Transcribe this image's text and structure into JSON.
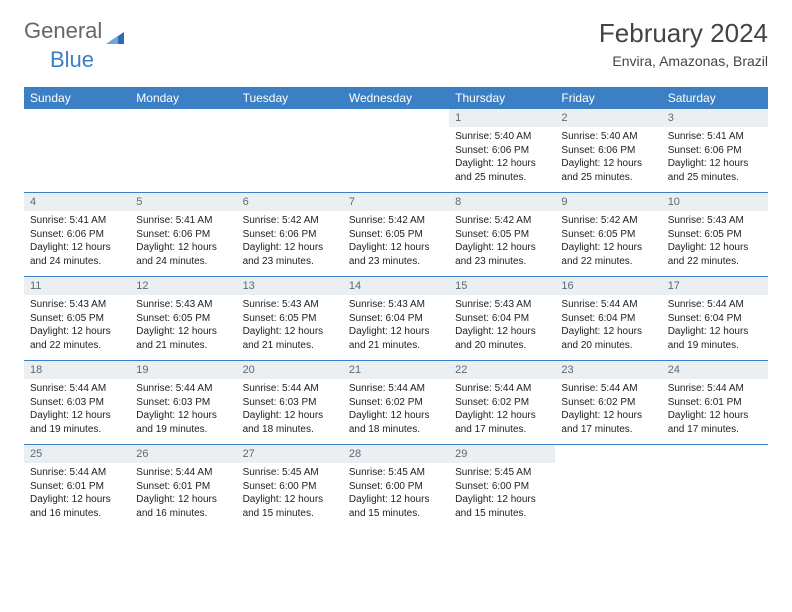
{
  "brand": {
    "part1": "General",
    "part2": "Blue"
  },
  "title": "February 2024",
  "location": "Envira, Amazonas, Brazil",
  "colors": {
    "header_bg": "#3b7fc4",
    "header_fg": "#ffffff",
    "daynum_bg": "#eceff1",
    "daynum_fg": "#5a6a78",
    "rule": "#3b7fc4",
    "text": "#222222"
  },
  "weekdays": [
    "Sunday",
    "Monday",
    "Tuesday",
    "Wednesday",
    "Thursday",
    "Friday",
    "Saturday"
  ],
  "weeks": [
    [
      null,
      null,
      null,
      null,
      {
        "n": "1",
        "sr": "5:40 AM",
        "ss": "6:06 PM",
        "dl": "12 hours and 25 minutes."
      },
      {
        "n": "2",
        "sr": "5:40 AM",
        "ss": "6:06 PM",
        "dl": "12 hours and 25 minutes."
      },
      {
        "n": "3",
        "sr": "5:41 AM",
        "ss": "6:06 PM",
        "dl": "12 hours and 25 minutes."
      }
    ],
    [
      {
        "n": "4",
        "sr": "5:41 AM",
        "ss": "6:06 PM",
        "dl": "12 hours and 24 minutes."
      },
      {
        "n": "5",
        "sr": "5:41 AM",
        "ss": "6:06 PM",
        "dl": "12 hours and 24 minutes."
      },
      {
        "n": "6",
        "sr": "5:42 AM",
        "ss": "6:06 PM",
        "dl": "12 hours and 23 minutes."
      },
      {
        "n": "7",
        "sr": "5:42 AM",
        "ss": "6:05 PM",
        "dl": "12 hours and 23 minutes."
      },
      {
        "n": "8",
        "sr": "5:42 AM",
        "ss": "6:05 PM",
        "dl": "12 hours and 23 minutes."
      },
      {
        "n": "9",
        "sr": "5:42 AM",
        "ss": "6:05 PM",
        "dl": "12 hours and 22 minutes."
      },
      {
        "n": "10",
        "sr": "5:43 AM",
        "ss": "6:05 PM",
        "dl": "12 hours and 22 minutes."
      }
    ],
    [
      {
        "n": "11",
        "sr": "5:43 AM",
        "ss": "6:05 PM",
        "dl": "12 hours and 22 minutes."
      },
      {
        "n": "12",
        "sr": "5:43 AM",
        "ss": "6:05 PM",
        "dl": "12 hours and 21 minutes."
      },
      {
        "n": "13",
        "sr": "5:43 AM",
        "ss": "6:05 PM",
        "dl": "12 hours and 21 minutes."
      },
      {
        "n": "14",
        "sr": "5:43 AM",
        "ss": "6:04 PM",
        "dl": "12 hours and 21 minutes."
      },
      {
        "n": "15",
        "sr": "5:43 AM",
        "ss": "6:04 PM",
        "dl": "12 hours and 20 minutes."
      },
      {
        "n": "16",
        "sr": "5:44 AM",
        "ss": "6:04 PM",
        "dl": "12 hours and 20 minutes."
      },
      {
        "n": "17",
        "sr": "5:44 AM",
        "ss": "6:04 PM",
        "dl": "12 hours and 19 minutes."
      }
    ],
    [
      {
        "n": "18",
        "sr": "5:44 AM",
        "ss": "6:03 PM",
        "dl": "12 hours and 19 minutes."
      },
      {
        "n": "19",
        "sr": "5:44 AM",
        "ss": "6:03 PM",
        "dl": "12 hours and 19 minutes."
      },
      {
        "n": "20",
        "sr": "5:44 AM",
        "ss": "6:03 PM",
        "dl": "12 hours and 18 minutes."
      },
      {
        "n": "21",
        "sr": "5:44 AM",
        "ss": "6:02 PM",
        "dl": "12 hours and 18 minutes."
      },
      {
        "n": "22",
        "sr": "5:44 AM",
        "ss": "6:02 PM",
        "dl": "12 hours and 17 minutes."
      },
      {
        "n": "23",
        "sr": "5:44 AM",
        "ss": "6:02 PM",
        "dl": "12 hours and 17 minutes."
      },
      {
        "n": "24",
        "sr": "5:44 AM",
        "ss": "6:01 PM",
        "dl": "12 hours and 17 minutes."
      }
    ],
    [
      {
        "n": "25",
        "sr": "5:44 AM",
        "ss": "6:01 PM",
        "dl": "12 hours and 16 minutes."
      },
      {
        "n": "26",
        "sr": "5:44 AM",
        "ss": "6:01 PM",
        "dl": "12 hours and 16 minutes."
      },
      {
        "n": "27",
        "sr": "5:45 AM",
        "ss": "6:00 PM",
        "dl": "12 hours and 15 minutes."
      },
      {
        "n": "28",
        "sr": "5:45 AM",
        "ss": "6:00 PM",
        "dl": "12 hours and 15 minutes."
      },
      {
        "n": "29",
        "sr": "5:45 AM",
        "ss": "6:00 PM",
        "dl": "12 hours and 15 minutes."
      },
      null,
      null
    ]
  ],
  "labels": {
    "sunrise": "Sunrise: ",
    "sunset": "Sunset: ",
    "daylight": "Daylight: "
  }
}
